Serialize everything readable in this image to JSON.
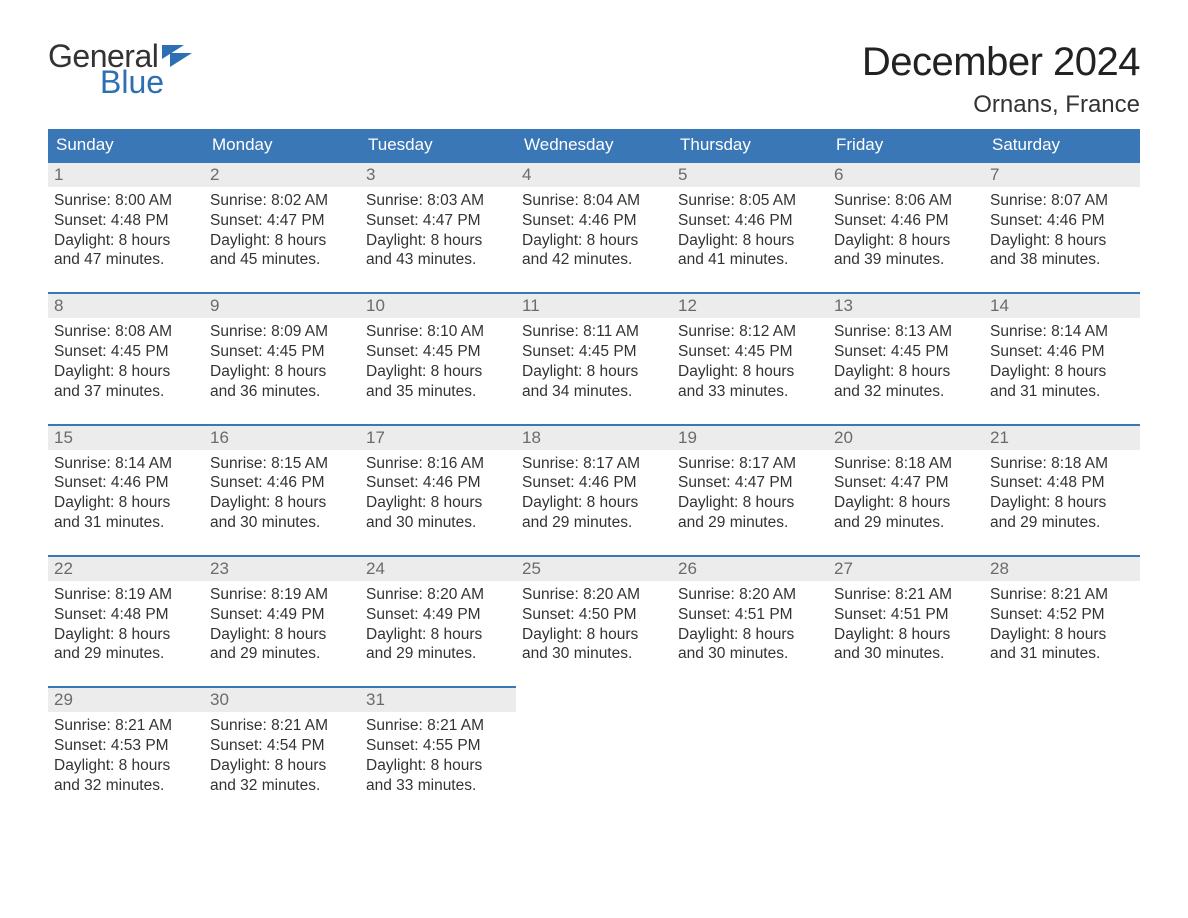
{
  "logo": {
    "word1": "General",
    "word2": "Blue"
  },
  "title": "December 2024",
  "location": "Ornans, France",
  "colors": {
    "header_bg": "#3a77b7",
    "day_bar_bg": "#ececec",
    "day_bar_border": "#3a77b7",
    "logo_blue": "#2d6fb5",
    "text": "#333333",
    "background": "#ffffff"
  },
  "weekdays": [
    "Sunday",
    "Monday",
    "Tuesday",
    "Wednesday",
    "Thursday",
    "Friday",
    "Saturday"
  ],
  "weeks": [
    [
      {
        "n": "1",
        "sunrise": "Sunrise: 8:00 AM",
        "sunset": "Sunset: 4:48 PM",
        "d1": "Daylight: 8 hours",
        "d2": "and 47 minutes."
      },
      {
        "n": "2",
        "sunrise": "Sunrise: 8:02 AM",
        "sunset": "Sunset: 4:47 PM",
        "d1": "Daylight: 8 hours",
        "d2": "and 45 minutes."
      },
      {
        "n": "3",
        "sunrise": "Sunrise: 8:03 AM",
        "sunset": "Sunset: 4:47 PM",
        "d1": "Daylight: 8 hours",
        "d2": "and 43 minutes."
      },
      {
        "n": "4",
        "sunrise": "Sunrise: 8:04 AM",
        "sunset": "Sunset: 4:46 PM",
        "d1": "Daylight: 8 hours",
        "d2": "and 42 minutes."
      },
      {
        "n": "5",
        "sunrise": "Sunrise: 8:05 AM",
        "sunset": "Sunset: 4:46 PM",
        "d1": "Daylight: 8 hours",
        "d2": "and 41 minutes."
      },
      {
        "n": "6",
        "sunrise": "Sunrise: 8:06 AM",
        "sunset": "Sunset: 4:46 PM",
        "d1": "Daylight: 8 hours",
        "d2": "and 39 minutes."
      },
      {
        "n": "7",
        "sunrise": "Sunrise: 8:07 AM",
        "sunset": "Sunset: 4:46 PM",
        "d1": "Daylight: 8 hours",
        "d2": "and 38 minutes."
      }
    ],
    [
      {
        "n": "8",
        "sunrise": "Sunrise: 8:08 AM",
        "sunset": "Sunset: 4:45 PM",
        "d1": "Daylight: 8 hours",
        "d2": "and 37 minutes."
      },
      {
        "n": "9",
        "sunrise": "Sunrise: 8:09 AM",
        "sunset": "Sunset: 4:45 PM",
        "d1": "Daylight: 8 hours",
        "d2": "and 36 minutes."
      },
      {
        "n": "10",
        "sunrise": "Sunrise: 8:10 AM",
        "sunset": "Sunset: 4:45 PM",
        "d1": "Daylight: 8 hours",
        "d2": "and 35 minutes."
      },
      {
        "n": "11",
        "sunrise": "Sunrise: 8:11 AM",
        "sunset": "Sunset: 4:45 PM",
        "d1": "Daylight: 8 hours",
        "d2": "and 34 minutes."
      },
      {
        "n": "12",
        "sunrise": "Sunrise: 8:12 AM",
        "sunset": "Sunset: 4:45 PM",
        "d1": "Daylight: 8 hours",
        "d2": "and 33 minutes."
      },
      {
        "n": "13",
        "sunrise": "Sunrise: 8:13 AM",
        "sunset": "Sunset: 4:45 PM",
        "d1": "Daylight: 8 hours",
        "d2": "and 32 minutes."
      },
      {
        "n": "14",
        "sunrise": "Sunrise: 8:14 AM",
        "sunset": "Sunset: 4:46 PM",
        "d1": "Daylight: 8 hours",
        "d2": "and 31 minutes."
      }
    ],
    [
      {
        "n": "15",
        "sunrise": "Sunrise: 8:14 AM",
        "sunset": "Sunset: 4:46 PM",
        "d1": "Daylight: 8 hours",
        "d2": "and 31 minutes."
      },
      {
        "n": "16",
        "sunrise": "Sunrise: 8:15 AM",
        "sunset": "Sunset: 4:46 PM",
        "d1": "Daylight: 8 hours",
        "d2": "and 30 minutes."
      },
      {
        "n": "17",
        "sunrise": "Sunrise: 8:16 AM",
        "sunset": "Sunset: 4:46 PM",
        "d1": "Daylight: 8 hours",
        "d2": "and 30 minutes."
      },
      {
        "n": "18",
        "sunrise": "Sunrise: 8:17 AM",
        "sunset": "Sunset: 4:46 PM",
        "d1": "Daylight: 8 hours",
        "d2": "and 29 minutes."
      },
      {
        "n": "19",
        "sunrise": "Sunrise: 8:17 AM",
        "sunset": "Sunset: 4:47 PM",
        "d1": "Daylight: 8 hours",
        "d2": "and 29 minutes."
      },
      {
        "n": "20",
        "sunrise": "Sunrise: 8:18 AM",
        "sunset": "Sunset: 4:47 PM",
        "d1": "Daylight: 8 hours",
        "d2": "and 29 minutes."
      },
      {
        "n": "21",
        "sunrise": "Sunrise: 8:18 AM",
        "sunset": "Sunset: 4:48 PM",
        "d1": "Daylight: 8 hours",
        "d2": "and 29 minutes."
      }
    ],
    [
      {
        "n": "22",
        "sunrise": "Sunrise: 8:19 AM",
        "sunset": "Sunset: 4:48 PM",
        "d1": "Daylight: 8 hours",
        "d2": "and 29 minutes."
      },
      {
        "n": "23",
        "sunrise": "Sunrise: 8:19 AM",
        "sunset": "Sunset: 4:49 PM",
        "d1": "Daylight: 8 hours",
        "d2": "and 29 minutes."
      },
      {
        "n": "24",
        "sunrise": "Sunrise: 8:20 AM",
        "sunset": "Sunset: 4:49 PM",
        "d1": "Daylight: 8 hours",
        "d2": "and 29 minutes."
      },
      {
        "n": "25",
        "sunrise": "Sunrise: 8:20 AM",
        "sunset": "Sunset: 4:50 PM",
        "d1": "Daylight: 8 hours",
        "d2": "and 30 minutes."
      },
      {
        "n": "26",
        "sunrise": "Sunrise: 8:20 AM",
        "sunset": "Sunset: 4:51 PM",
        "d1": "Daylight: 8 hours",
        "d2": "and 30 minutes."
      },
      {
        "n": "27",
        "sunrise": "Sunrise: 8:21 AM",
        "sunset": "Sunset: 4:51 PM",
        "d1": "Daylight: 8 hours",
        "d2": "and 30 minutes."
      },
      {
        "n": "28",
        "sunrise": "Sunrise: 8:21 AM",
        "sunset": "Sunset: 4:52 PM",
        "d1": "Daylight: 8 hours",
        "d2": "and 31 minutes."
      }
    ],
    [
      {
        "n": "29",
        "sunrise": "Sunrise: 8:21 AM",
        "sunset": "Sunset: 4:53 PM",
        "d1": "Daylight: 8 hours",
        "d2": "and 32 minutes."
      },
      {
        "n": "30",
        "sunrise": "Sunrise: 8:21 AM",
        "sunset": "Sunset: 4:54 PM",
        "d1": "Daylight: 8 hours",
        "d2": "and 32 minutes."
      },
      {
        "n": "31",
        "sunrise": "Sunrise: 8:21 AM",
        "sunset": "Sunset: 4:55 PM",
        "d1": "Daylight: 8 hours",
        "d2": "and 33 minutes."
      },
      null,
      null,
      null,
      null
    ]
  ]
}
